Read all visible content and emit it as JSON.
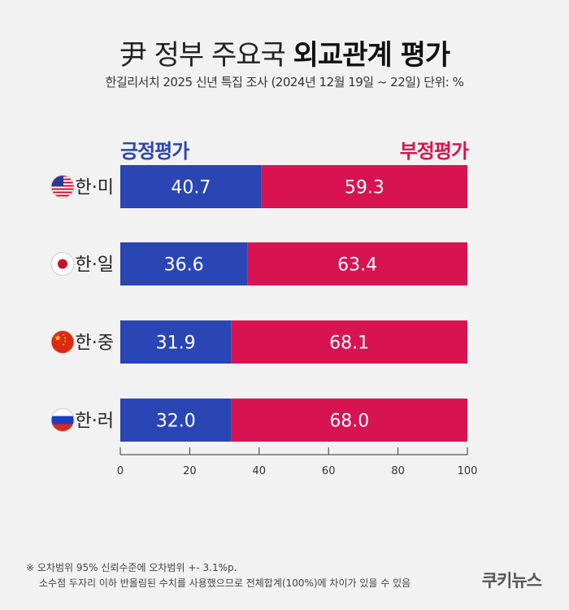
{
  "header": {
    "title_normal": "尹 정부 주요국",
    "title_bold": "외교관계 평가",
    "subtitle": "한길리서치 2025 신년 특집 조사 (2024년 12월 19일 ~ 22일) 단위: %"
  },
  "legend": {
    "positive": "긍정평가",
    "negative": "부정평가"
  },
  "colors": {
    "positive": "#2a45b4",
    "negative": "#d71352"
  },
  "chart_data": {
    "type": "bar",
    "orientation": "horizontal-stacked",
    "categories": [
      "한·미",
      "한·일",
      "한·중",
      "한·러"
    ],
    "flags": [
      "us-flag-icon",
      "japan-flag-icon",
      "china-flag-icon",
      "russia-flag-icon"
    ],
    "series": [
      {
        "name": "긍정평가",
        "values": [
          40.7,
          36.6,
          31.9,
          32.0
        ]
      },
      {
        "name": "부정평가",
        "values": [
          59.3,
          63.4,
          68.1,
          68.0
        ]
      }
    ],
    "xlim": [
      0,
      100
    ],
    "xticks": [
      "0",
      "20",
      "40",
      "60",
      "80",
      "100"
    ],
    "legend_position": "top"
  },
  "footnote": {
    "line1": "※ 오차범위 95% 신뢰수준에 오차범위 +- 3.1%p.",
    "line2": "소수점 두자리 이하 반올림된 수치를 사용했으므로 전체합계(100%)에 차이가 있을 수 있음"
  },
  "brand": "쿠키뉴스"
}
